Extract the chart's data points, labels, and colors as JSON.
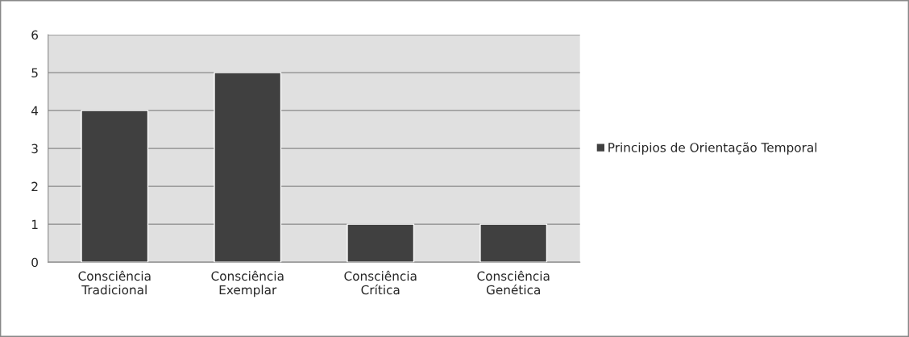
{
  "chart_data": {
    "type": "bar",
    "categories": [
      "Consciência\nTradicional",
      "Consciência\nExemplar",
      "Consciência\nCrítica",
      "Consciência\nGenética"
    ],
    "series": [
      {
        "name": "Principios de Orientação Temporal",
        "color": "#404040",
        "values": [
          4,
          5,
          1,
          1
        ]
      }
    ],
    "ylim": [
      0,
      6
    ],
    "yticks": [
      0,
      1,
      2,
      3,
      4,
      5,
      6
    ],
    "grid": "y",
    "legend": "right"
  }
}
